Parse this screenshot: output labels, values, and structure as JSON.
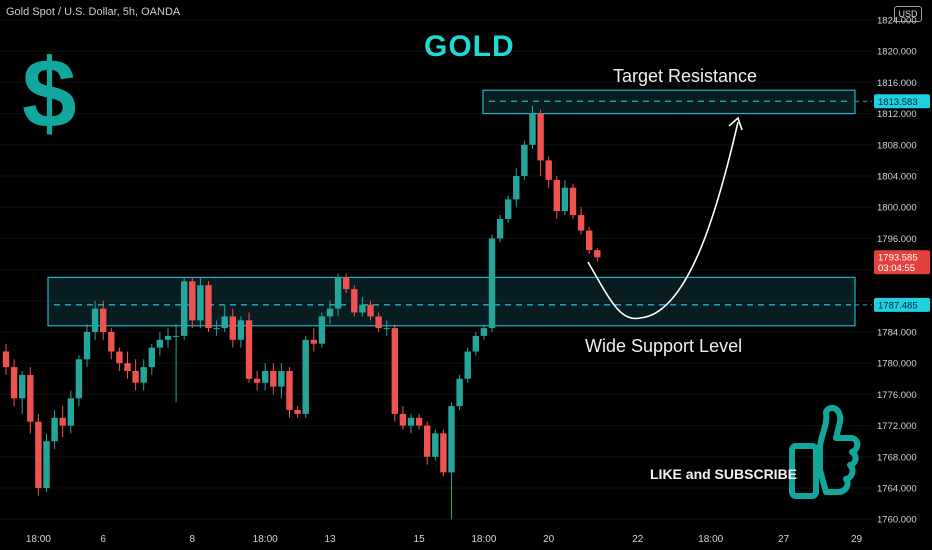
{
  "header": {
    "symbol_line": "Gold Spot / U.S. Dollar, 5h, OANDA",
    "currency_badge": "USD"
  },
  "annotations": {
    "title": "GOLD",
    "dollar_sign": "$",
    "target_label": "Target Resistance",
    "support_label": "Wide Support Level",
    "like_subscribe": "LIKE and SUBSCRIBE"
  },
  "colors": {
    "up": "#26a69a",
    "down": "#ef5350",
    "zone_border": "#1fb5c7",
    "accent": "#1fd9d4",
    "icon": "#12a79d"
  },
  "icons": [
    "thumbs-up-icon",
    "dollar-icon",
    "arrow-curve-icon"
  ],
  "chart_data": {
    "type": "candlestick",
    "title": "GOLD",
    "ylim": [
      1759,
      1825
    ],
    "y_ticks": [
      "1824.000",
      "1820.000",
      "1816.000",
      "1812.000",
      "1808.000",
      "1804.000",
      "1800.000",
      "1796.000",
      "1792.000",
      "1788.000",
      "1784.000",
      "1780.000",
      "1776.000",
      "1772.000",
      "1768.000",
      "1764.000",
      "1760.000"
    ],
    "y_tick_values": [
      1824,
      1820,
      1816,
      1812,
      1808,
      1804,
      1800,
      1796,
      1792,
      1788,
      1784,
      1780,
      1776,
      1772,
      1768,
      1764,
      1760
    ],
    "x_tick_labels": [
      "18:00",
      "6",
      "8",
      "18:00",
      "13",
      "15",
      "18:00",
      "20",
      "22",
      "18:00",
      "27",
      "29"
    ],
    "x_tick_index": [
      4,
      12,
      23,
      32,
      40,
      51,
      59,
      67,
      78,
      87,
      96,
      105
    ],
    "price_labels": {
      "resistance": {
        "value": 1813.583,
        "text": "1813.583"
      },
      "support": {
        "value": 1787.485,
        "text": "1787.485"
      },
      "current": {
        "value": 1793.585,
        "text": "1793.585",
        "countdown": "03:04:55"
      }
    },
    "zones": [
      {
        "name": "Target Resistance",
        "low": 1812.0,
        "high": 1815.0,
        "line": 1813.583
      },
      {
        "name": "Wide Support Level",
        "low": 1784.8,
        "high": 1791.0,
        "line": 1787.485
      }
    ],
    "candles": [
      [
        1781.5,
        1782.5,
        1778.5,
        1779.5
      ],
      [
        1779.5,
        1780.5,
        1774.5,
        1775.5
      ],
      [
        1775.5,
        1779.0,
        1773.5,
        1778.5
      ],
      [
        1778.5,
        1779.5,
        1771.0,
        1772.5
      ],
      [
        1772.5,
        1773.5,
        1763.0,
        1764.0
      ],
      [
        1764.0,
        1771.0,
        1763.5,
        1770.0
      ],
      [
        1770.0,
        1774.0,
        1769.0,
        1773.0
      ],
      [
        1773.0,
        1774.5,
        1770.5,
        1772.0
      ],
      [
        1772.0,
        1776.5,
        1771.0,
        1775.5
      ],
      [
        1775.5,
        1781.0,
        1774.5,
        1780.5
      ],
      [
        1780.5,
        1785.0,
        1779.5,
        1784.0
      ],
      [
        1784.0,
        1788.0,
        1783.0,
        1787.0
      ],
      [
        1787.0,
        1788.0,
        1783.0,
        1784.0
      ],
      [
        1784.0,
        1784.5,
        1780.5,
        1781.5
      ],
      [
        1781.5,
        1782.0,
        1779.0,
        1780.0
      ],
      [
        1780.0,
        1781.5,
        1778.0,
        1779.0
      ],
      [
        1779.0,
        1780.5,
        1776.5,
        1777.5
      ],
      [
        1777.5,
        1780.5,
        1776.5,
        1779.5
      ],
      [
        1779.5,
        1782.5,
        1778.5,
        1782.0
      ],
      [
        1782.0,
        1784.0,
        1781.0,
        1783.0
      ],
      [
        1783.0,
        1784.5,
        1782.0,
        1783.5
      ],
      [
        1783.5,
        1785.0,
        1775.0,
        1783.5
      ],
      [
        1783.5,
        1791.0,
        1783.0,
        1790.5
      ],
      [
        1790.5,
        1791.0,
        1784.5,
        1785.5
      ],
      [
        1785.5,
        1791.0,
        1784.5,
        1790.0
      ],
      [
        1790.0,
        1790.5,
        1784.0,
        1784.5
      ],
      [
        1784.5,
        1785.5,
        1783.5,
        1784.5
      ],
      [
        1784.5,
        1787.5,
        1784.0,
        1786.0
      ],
      [
        1786.0,
        1787.0,
        1782.0,
        1783.0
      ],
      [
        1783.0,
        1786.0,
        1782.0,
        1785.5
      ],
      [
        1785.5,
        1786.5,
        1777.5,
        1778.0
      ],
      [
        1778.0,
        1779.0,
        1776.5,
        1777.5
      ],
      [
        1777.5,
        1780.0,
        1776.5,
        1779.0
      ],
      [
        1779.0,
        1780.0,
        1776.0,
        1777.0
      ],
      [
        1777.0,
        1780.0,
        1775.5,
        1779.0
      ],
      [
        1779.0,
        1779.5,
        1773.0,
        1774.0
      ],
      [
        1774.0,
        1774.5,
        1773.0,
        1773.5
      ],
      [
        1773.5,
        1783.5,
        1773.0,
        1783.0
      ],
      [
        1783.0,
        1784.5,
        1781.5,
        1782.5
      ],
      [
        1782.5,
        1786.5,
        1782.0,
        1786.0
      ],
      [
        1786.0,
        1788.0,
        1785.0,
        1787.0
      ],
      [
        1787.0,
        1791.5,
        1786.0,
        1791.0
      ],
      [
        1791.0,
        1791.5,
        1789.0,
        1789.5
      ],
      [
        1789.5,
        1790.0,
        1786.0,
        1786.5
      ],
      [
        1786.5,
        1788.5,
        1786.0,
        1787.5
      ],
      [
        1787.5,
        1788.0,
        1785.5,
        1786.0
      ],
      [
        1786.0,
        1786.5,
        1784.0,
        1784.5
      ],
      [
        1784.5,
        1785.5,
        1783.5,
        1784.5
      ],
      [
        1784.5,
        1785.0,
        1772.5,
        1773.5
      ],
      [
        1773.5,
        1774.5,
        1771.5,
        1772.0
      ],
      [
        1772.0,
        1773.5,
        1771.0,
        1773.0
      ],
      [
        1773.0,
        1773.5,
        1771.5,
        1772.0
      ],
      [
        1772.0,
        1772.5,
        1767.0,
        1768.0
      ],
      [
        1768.0,
        1771.5,
        1767.5,
        1771.0
      ],
      [
        1771.0,
        1771.5,
        1765.5,
        1766.0
      ],
      [
        1766.0,
        1775.0,
        1760.0,
        1774.5
      ],
      [
        1774.5,
        1778.5,
        1774.0,
        1778.0
      ],
      [
        1778.0,
        1782.0,
        1777.5,
        1781.5
      ],
      [
        1781.5,
        1784.0,
        1781.0,
        1783.5
      ],
      [
        1783.5,
        1785.0,
        1783.0,
        1784.5
      ],
      [
        1784.5,
        1796.5,
        1784.0,
        1796.0
      ],
      [
        1796.0,
        1799.0,
        1795.5,
        1798.5
      ],
      [
        1798.5,
        1801.5,
        1798.0,
        1801.0
      ],
      [
        1801.0,
        1805.0,
        1800.0,
        1804.0
      ],
      [
        1804.0,
        1808.5,
        1803.5,
        1808.0
      ],
      [
        1808.0,
        1813.0,
        1807.5,
        1812.0
      ],
      [
        1812.0,
        1812.5,
        1804.0,
        1806.0
      ],
      [
        1806.0,
        1806.5,
        1802.5,
        1803.5
      ],
      [
        1803.5,
        1804.0,
        1798.5,
        1799.5
      ],
      [
        1799.5,
        1803.5,
        1799.0,
        1802.5
      ],
      [
        1802.5,
        1803.0,
        1798.5,
        1799.0
      ],
      [
        1799.0,
        1800.0,
        1796.5,
        1797.0
      ],
      [
        1797.0,
        1797.5,
        1794.0,
        1794.5
      ],
      [
        1794.5,
        1794.8,
        1793.0,
        1793.585
      ]
    ]
  }
}
